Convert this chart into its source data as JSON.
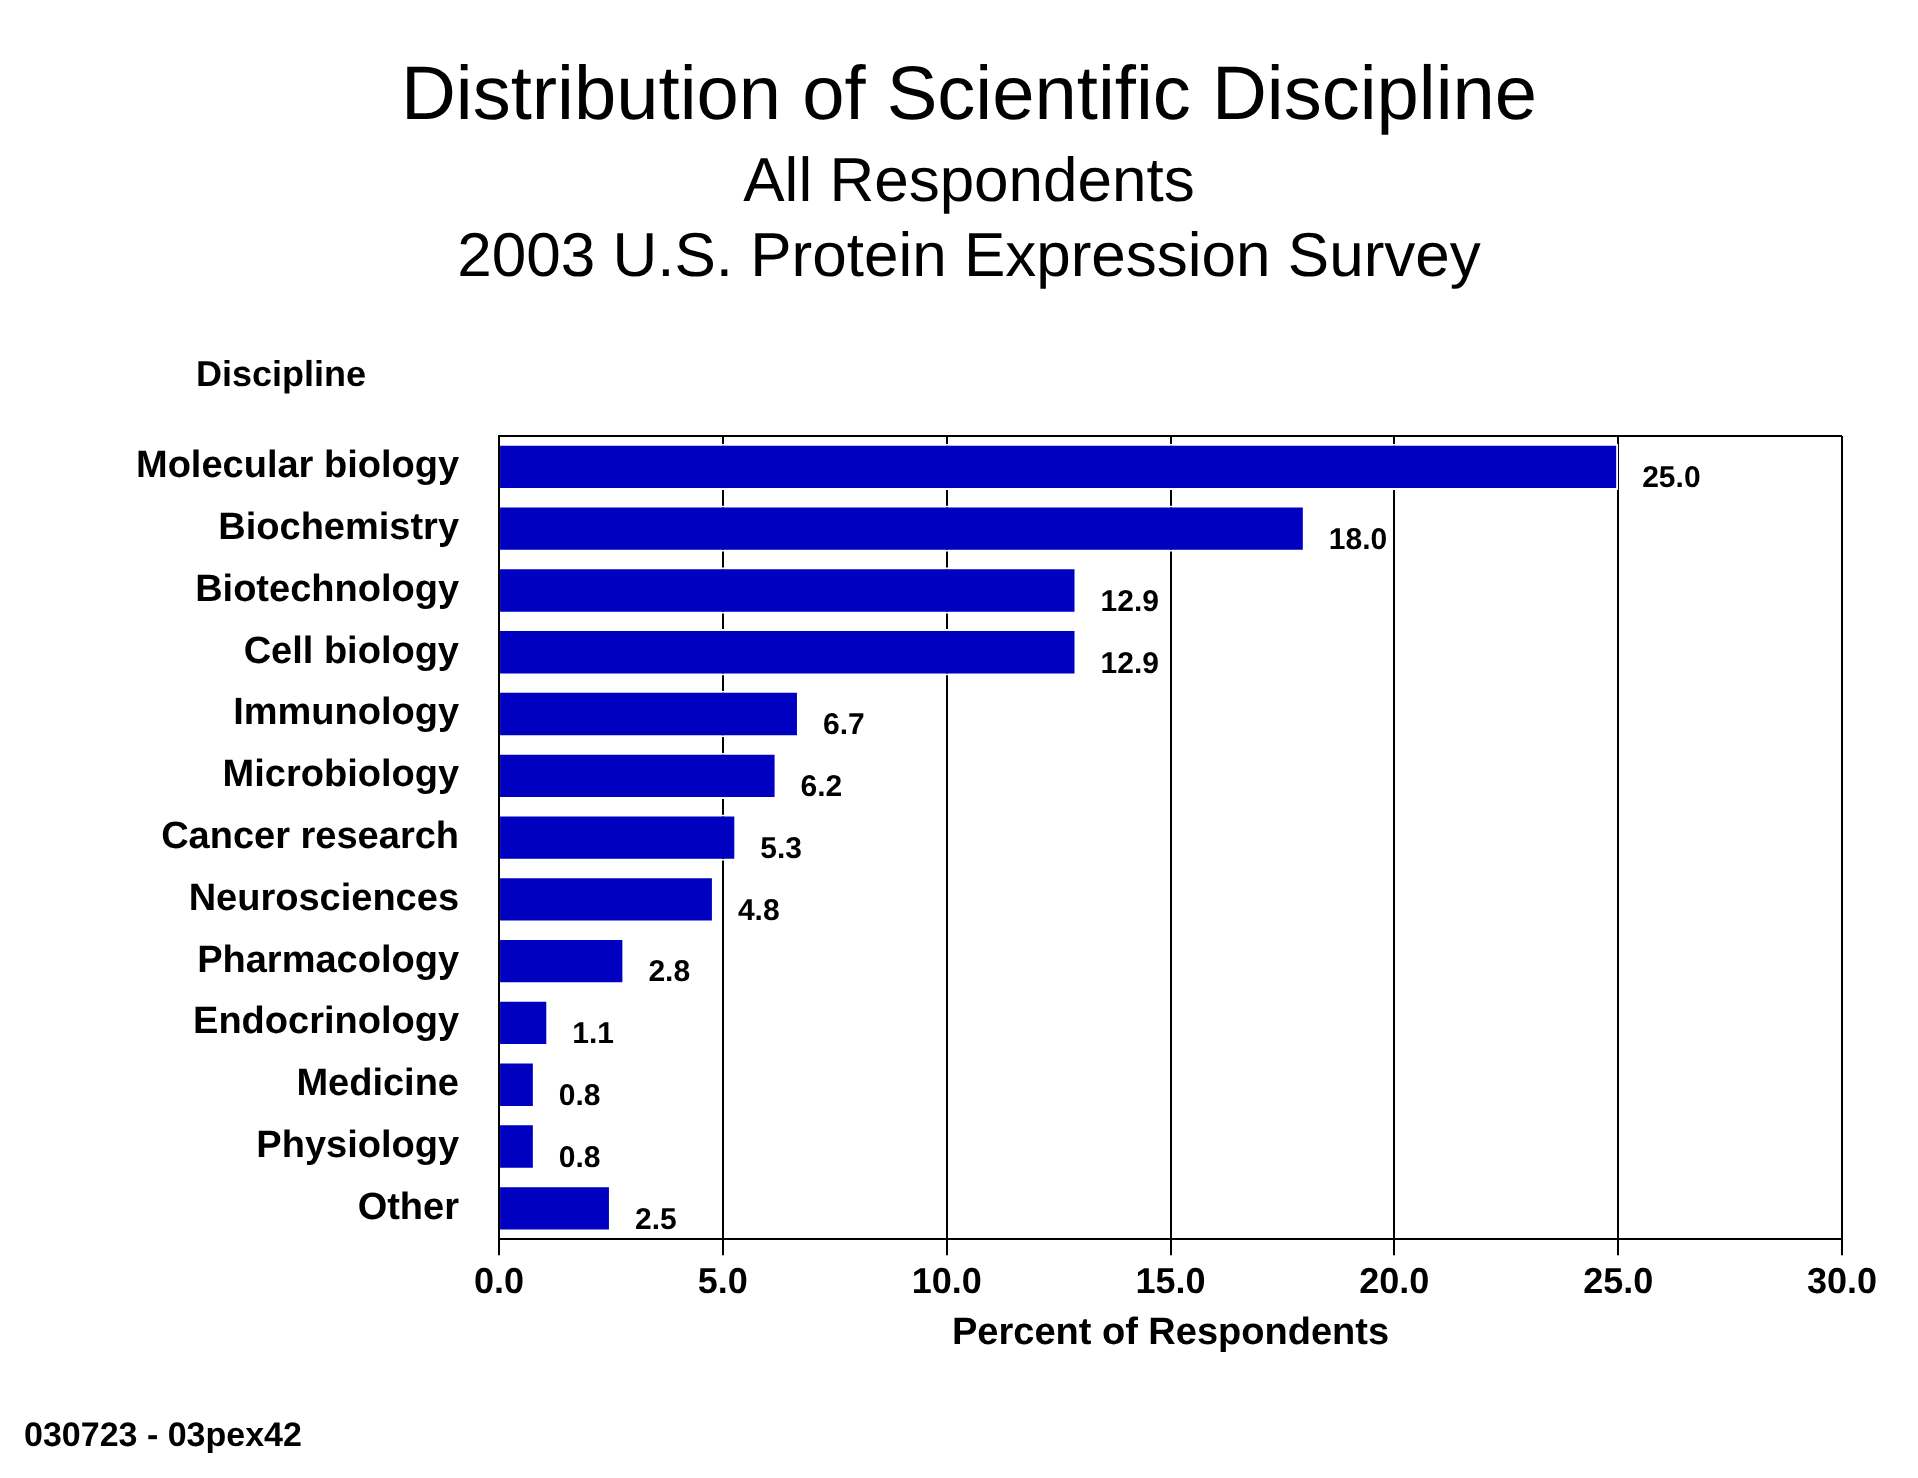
{
  "chart_data": {
    "type": "bar",
    "orientation": "horizontal",
    "title": "Distribution of Scientific Discipline",
    "subtitle": "All Respondents\n2003 U.S. Protein Expression Survey",
    "ylabel": "Discipline",
    "xlabel": "Percent of Respondents",
    "categories": [
      "Molecular biology",
      "Biochemistry",
      "Biotechnology",
      "Cell biology",
      "Immunology",
      "Microbiology",
      "Cancer research",
      "Neurosciences",
      "Pharmacology",
      "Endocrinology",
      "Medicine",
      "Physiology",
      "Other"
    ],
    "values": [
      25.0,
      18.0,
      12.9,
      12.9,
      6.7,
      6.2,
      5.3,
      4.8,
      2.8,
      1.1,
      0.8,
      0.8,
      2.5
    ],
    "value_labels": [
      "25.0",
      "18.0",
      "12.9",
      "12.9",
      "6.7",
      "6.2",
      "5.3",
      "4.8",
      "2.8",
      "1.1",
      "0.8",
      "0.8",
      "2.5"
    ],
    "color": "#0000c0",
    "xlim": [
      0,
      30
    ],
    "xticks": [
      {
        "value": 0,
        "label": "0.0"
      },
      {
        "value": 5,
        "label": "5.0"
      },
      {
        "value": 10,
        "label": "10.0"
      },
      {
        "value": 15,
        "label": "15.0"
      },
      {
        "value": 20,
        "label": "20.0"
      },
      {
        "value": 25,
        "label": "25.0"
      },
      {
        "value": 30,
        "label": "30.0"
      }
    ],
    "grid": "x",
    "legend": false,
    "annotations": [
      "030723 - 03pex42"
    ]
  }
}
